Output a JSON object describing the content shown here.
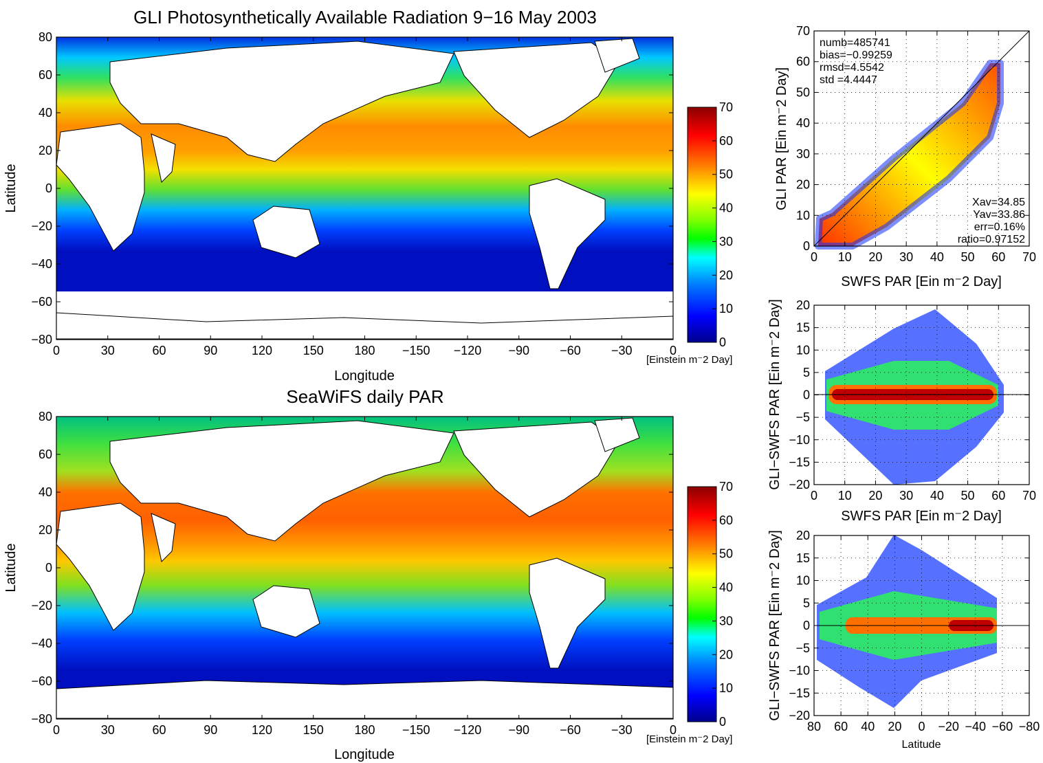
{
  "chart_data": [
    {
      "type": "heatmap",
      "title": "GLI Photosynthetically Available Radiation 9−16 May 2003",
      "xlabel": "Longitude",
      "ylabel": "Latitude",
      "xticks": [
        "0",
        "30",
        "60",
        "90",
        "120",
        "150",
        "180",
        "−150",
        "−120",
        "−90",
        "−60",
        "−30",
        "0"
      ],
      "yticks": [
        "80",
        "60",
        "40",
        "20",
        "0",
        "−20",
        "−40",
        "−60",
        "−80"
      ],
      "xlim": [
        0,
        360
      ],
      "ylim": [
        -80,
        80
      ],
      "colorbar": {
        "ticks": [
          "0",
          "10",
          "20",
          "30",
          "40",
          "50",
          "60",
          "70"
        ],
        "range": [
          0,
          70
        ],
        "unit": "[Einstein m⁻2 Day]"
      },
      "ocean_coverage_lat": [
        -54,
        80
      ]
    },
    {
      "type": "heatmap",
      "title": "SeaWiFS daily PAR",
      "xlabel": "Longitude",
      "ylabel": "Latitude",
      "xticks": [
        "0",
        "30",
        "60",
        "90",
        "120",
        "150",
        "180",
        "−150",
        "−120",
        "−90",
        "−60",
        "−30",
        "0"
      ],
      "yticks": [
        "80",
        "60",
        "40",
        "20",
        "0",
        "−20",
        "−40",
        "−60",
        "−80"
      ],
      "xlim": [
        0,
        360
      ],
      "ylim": [
        -80,
        80
      ],
      "colorbar": {
        "ticks": [
          "0",
          "10",
          "20",
          "30",
          "40",
          "50",
          "60",
          "70"
        ],
        "range": [
          0,
          70
        ],
        "unit": "[Einstein m⁻2 Day]"
      },
      "ocean_coverage_lat": [
        -64,
        80
      ]
    },
    {
      "type": "scatter",
      "xlabel": "SWFS PAR [Ein m⁻2 Day]",
      "ylabel": "GLI PAR [Ein m⁻2 Day]",
      "xlim": [
        0,
        70
      ],
      "ylim": [
        0,
        70
      ],
      "xticks": [
        "0",
        "10",
        "20",
        "30",
        "40",
        "50",
        "60",
        "70"
      ],
      "yticks": [
        "0",
        "10",
        "20",
        "30",
        "40",
        "50",
        "60",
        "70"
      ],
      "stats_top": [
        "numb=485741",
        "bias=−0.99259",
        "rmsd=4.5542",
        "std =4.4447"
      ],
      "stats_bottom": [
        "Xav=34.85",
        "Yav=33.86",
        "err=0.16%",
        "ratio=0.97152"
      ],
      "reference_line": [
        [
          0,
          0
        ],
        [
          70,
          70
        ]
      ],
      "point_range_x": [
        4,
        61
      ]
    },
    {
      "type": "scatter",
      "xlabel": "SWFS PAR [Ein m⁻2 Day]",
      "ylabel": "GLI−SWFS PAR [Ein m⁻2 Day]",
      "xlim": [
        0,
        70
      ],
      "ylim": [
        -20,
        20
      ],
      "xticks": [
        "0",
        "10",
        "20",
        "30",
        "40",
        "50",
        "60",
        "70"
      ],
      "yticks": [
        "20",
        "15",
        "10",
        "5",
        "0",
        "−5",
        "−10",
        "−15",
        "−20"
      ],
      "reference_line": [
        [
          0,
          0
        ],
        [
          70,
          0
        ]
      ],
      "point_range_x": [
        4,
        61
      ]
    },
    {
      "type": "scatter",
      "xlabel": "Latitude",
      "ylabel": "GLI−SWFS PAR [Ein m⁻2 Day]",
      "xlim": [
        80,
        -80
      ],
      "ylim": [
        -20,
        20
      ],
      "xticks": [
        "80",
        "60",
        "40",
        "20",
        "0",
        "−20",
        "−40",
        "−60",
        "−80"
      ],
      "yticks": [
        "20",
        "15",
        "10",
        "5",
        "0",
        "−5",
        "−10",
        "−15",
        "−20"
      ],
      "reference_line": [
        [
          80,
          0
        ],
        [
          -80,
          0
        ]
      ],
      "point_range_x": [
        79,
        -55
      ]
    }
  ],
  "colors": {
    "colormap": [
      "#00008f",
      "#0000ff",
      "#0080ff",
      "#00ffff",
      "#00ff00",
      "#80ff00",
      "#ffff00",
      "#ff8000",
      "#ff0000",
      "#8b0000"
    ],
    "land": "#ffffff",
    "axis": "#000000"
  }
}
